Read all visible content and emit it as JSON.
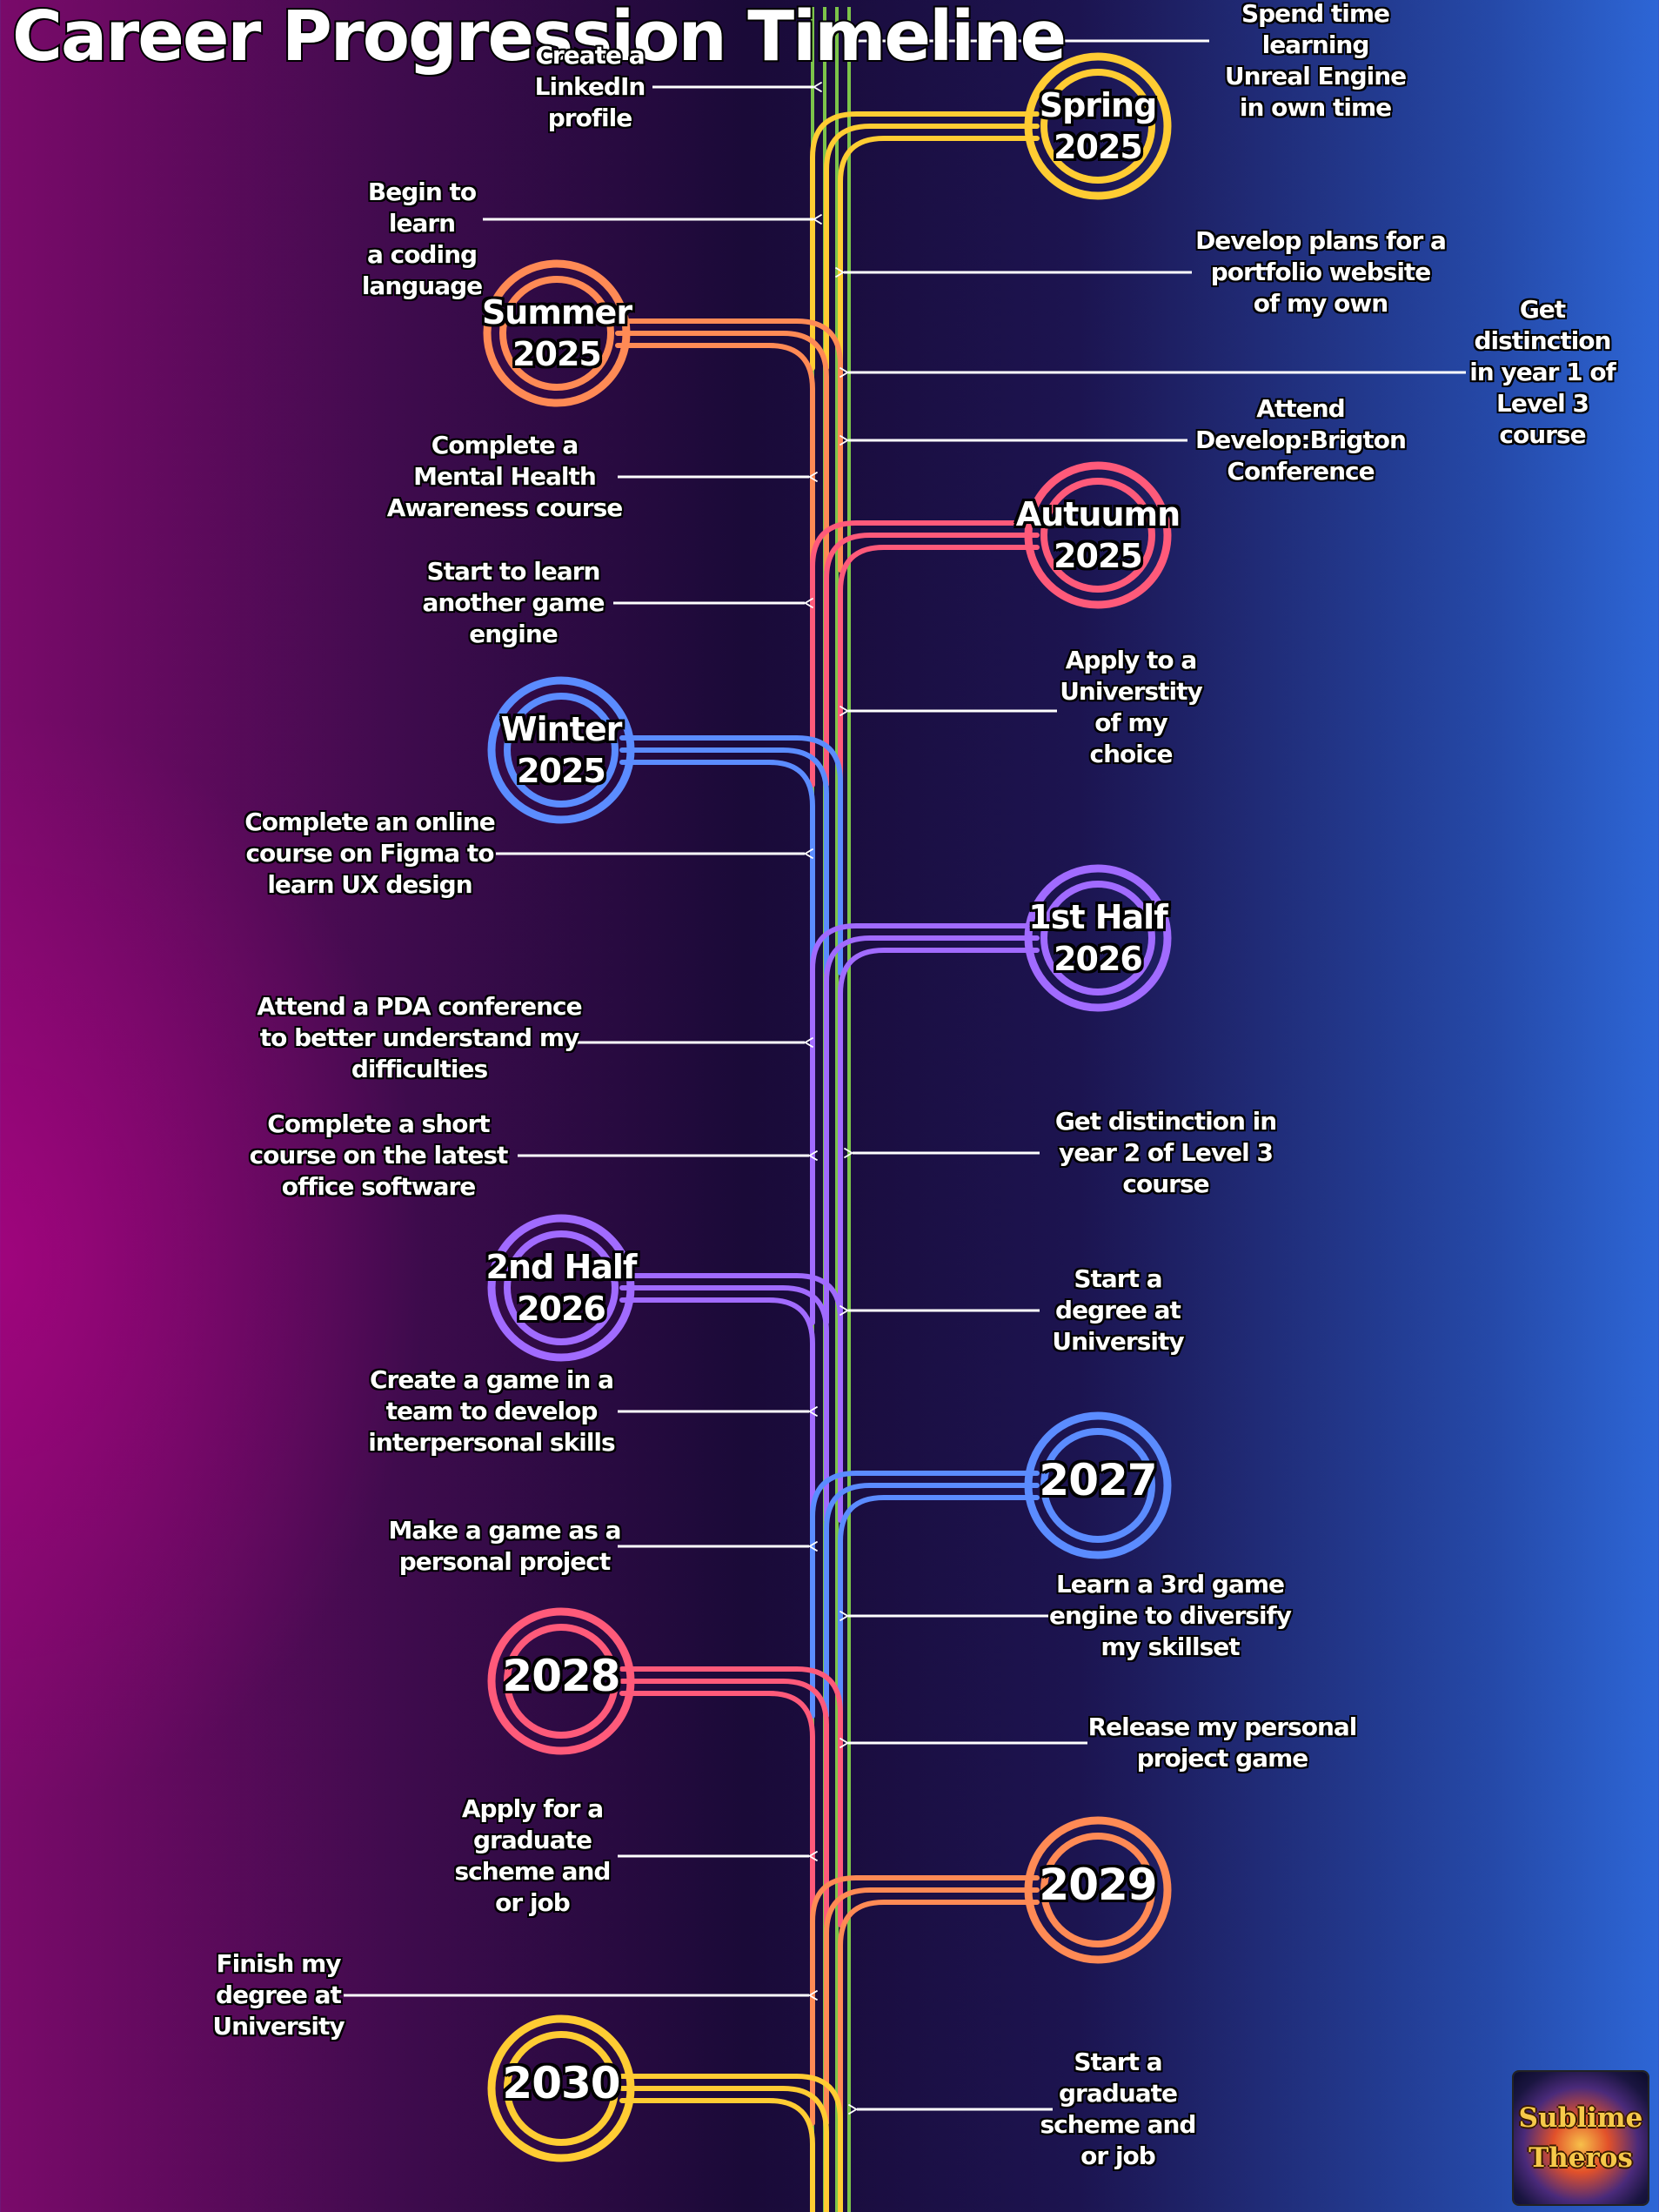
{
  "title": "Career\nProgression\nTimeline",
  "logo_text": "Sublime\nTheros",
  "colors": {
    "yellow": "#ffcc33",
    "orange": "#ff8a55",
    "pink": "#ff5a7a",
    "blue": "#5b8cff",
    "purple": "#a16bff",
    "green": "#7cc44a"
  },
  "milestones": [
    {
      "label": "Spring\n2025",
      "color": "yellow"
    },
    {
      "label": "Summer\n2025",
      "color": "orange"
    },
    {
      "label": "Autuumn\n2025",
      "color": "pink"
    },
    {
      "label": "Winter\n2025",
      "color": "blue"
    },
    {
      "label": "1st Half\n2026",
      "color": "purple"
    },
    {
      "label": "2nd Half\n2026",
      "color": "purple"
    },
    {
      "label": "2027",
      "color": "blue"
    },
    {
      "label": "2028",
      "color": "pink"
    },
    {
      "label": "2029",
      "color": "orange"
    },
    {
      "label": "2030",
      "color": "yellow"
    }
  ],
  "goals": [
    {
      "text": "Create a\nLinkedIn\nprofile",
      "side": "left"
    },
    {
      "text": "Spend time\nlearning\nUnreal Engine\nin own time",
      "side": "right"
    },
    {
      "text": "Begin to\nlearn\na coding\nlanguage",
      "side": "left"
    },
    {
      "text": "Develop plans for a\nportfolio website\nof my own",
      "side": "right"
    },
    {
      "text": "Get\ndistinction\nin year 1 of\nLevel 3\ncourse",
      "side": "right"
    },
    {
      "text": "Attend\nDevelop:Brigton\nConference",
      "side": "right"
    },
    {
      "text": "Complete a\nMental Health\nAwareness course",
      "side": "left"
    },
    {
      "text": "Start to learn\nanother game\nengine",
      "side": "left"
    },
    {
      "text": "Apply to a\nUniverstity\nof my\nchoice",
      "side": "right"
    },
    {
      "text": "Complete an online\ncourse on Figma to\nlearn UX design",
      "side": "left"
    },
    {
      "text": "Attend a PDA conference\nto better understand my\ndifficulties",
      "side": "left"
    },
    {
      "text": "Complete a short\ncourse on the latest\noffice software",
      "side": "left"
    },
    {
      "text": "Get distinction in\nyear 2 of Level 3\ncourse",
      "side": "right"
    },
    {
      "text": "Start a\ndegree at\nUniversity",
      "side": "right"
    },
    {
      "text": "Create a game in a\nteam to develop\ninterpersonal skills",
      "side": "left"
    },
    {
      "text": "Make a game as a\npersonal project",
      "side": "left"
    },
    {
      "text": "Learn a 3rd  game\nengine to diversify\nmy skillset",
      "side": "right"
    },
    {
      "text": "Release my personal\nproject game",
      "side": "right"
    },
    {
      "text": "Apply for a\ngraduate\nscheme and\nor job",
      "side": "left"
    },
    {
      "text": "Finish my\ndegree at\nUniversity",
      "side": "left"
    },
    {
      "text": "Start a\ngraduate\nscheme and\nor job",
      "side": "right"
    }
  ]
}
